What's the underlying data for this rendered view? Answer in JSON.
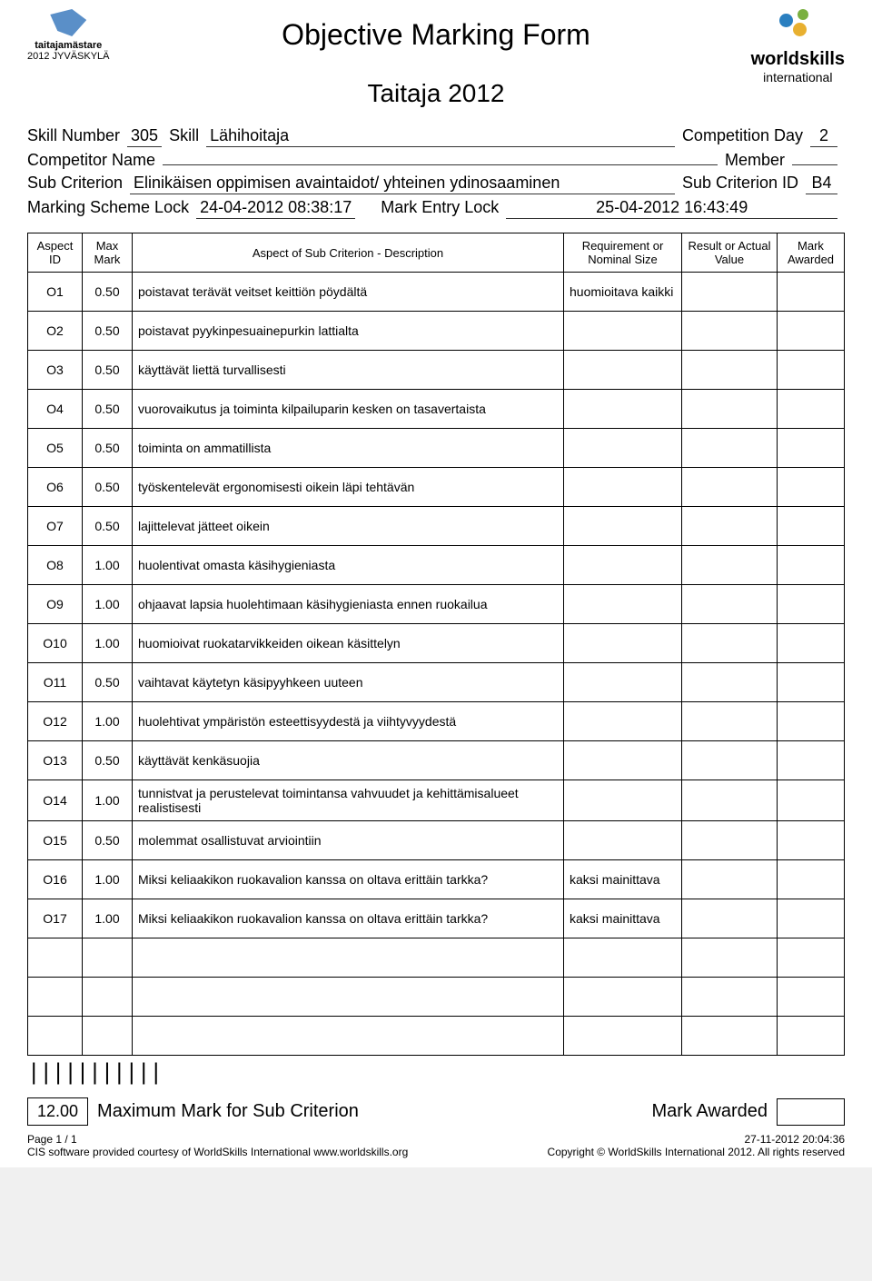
{
  "header": {
    "title": "Objective Marking Form",
    "subtitle": "Taitaja 2012",
    "logo_left_text1": "taitajamästare",
    "logo_left_text2": "2012 JYVÄSKYLÄ",
    "logo_right_text1": "worldskills",
    "logo_right_text2": "international"
  },
  "info": {
    "skill_number_label": "Skill Number",
    "skill_number": "305",
    "skill_label": "Skill",
    "skill": "Lähihoitaja",
    "competition_day_label": "Competition Day",
    "competition_day": "2",
    "competitor_name_label": "Competitor Name",
    "competitor_name": "",
    "member_label": "Member",
    "member": "",
    "sub_criterion_label": "Sub Criterion",
    "sub_criterion": "Elinikäisen oppimisen avaintaidot/ yhteinen ydinosaaminen",
    "sub_criterion_id_label": "Sub Criterion ID",
    "sub_criterion_id": "B4",
    "marking_scheme_lock_label": "Marking Scheme Lock",
    "marking_scheme_lock": "24-04-2012 08:38:17",
    "mark_entry_lock_label": "Mark Entry Lock",
    "mark_entry_lock": "25-04-2012 16:43:49"
  },
  "columns": {
    "aspect_id": "Aspect ID",
    "max_mark": "Max Mark",
    "description": "Aspect of Sub Criterion - Description",
    "requirement": "Requirement or Nominal Size",
    "result": "Result or Actual Value",
    "mark_awarded": "Mark Awarded"
  },
  "rows": [
    {
      "id": "O1",
      "max": "0.50",
      "desc": "poistavat terävät veitset keittiön pöydältä",
      "req": "huomioitava kaikki"
    },
    {
      "id": "O2",
      "max": "0.50",
      "desc": "poistavat pyykinpesuainepurkin lattialta",
      "req": ""
    },
    {
      "id": "O3",
      "max": "0.50",
      "desc": "käyttävät liettä turvallisesti",
      "req": ""
    },
    {
      "id": "O4",
      "max": "0.50",
      "desc": "vuorovaikutus ja toiminta kilpailuparin kesken on tasavertaista",
      "req": ""
    },
    {
      "id": "O5",
      "max": "0.50",
      "desc": "toiminta on ammatillista",
      "req": ""
    },
    {
      "id": "O6",
      "max": "0.50",
      "desc": "työskentelevät ergonomisesti oikein läpi tehtävän",
      "req": ""
    },
    {
      "id": "O7",
      "max": "0.50",
      "desc": "lajittelevat jätteet oikein",
      "req": ""
    },
    {
      "id": "O8",
      "max": "1.00",
      "desc": "huolentivat omasta käsihygieniasta",
      "req": ""
    },
    {
      "id": "O9",
      "max": "1.00",
      "desc": "ohjaavat lapsia huolehtimaan käsihygieniasta ennen ruokailua",
      "req": ""
    },
    {
      "id": "O10",
      "max": "1.00",
      "desc": "huomioivat ruokatarvikkeiden oikean käsittelyn",
      "req": ""
    },
    {
      "id": "O11",
      "max": "0.50",
      "desc": "vaihtavat käytetyn käsipyyhkeen uuteen",
      "req": ""
    },
    {
      "id": "O12",
      "max": "1.00",
      "desc": "huolehtivat ympäristön esteettisyydestä ja viihtyvyydestä",
      "req": ""
    },
    {
      "id": "O13",
      "max": "0.50",
      "desc": "käyttävät kenkäsuojia",
      "req": ""
    },
    {
      "id": "O14",
      "max": "1.00",
      "desc": "tunnistvat ja perustelevat toimintansa vahvuudet ja kehittämisalueet realistisesti",
      "req": ""
    },
    {
      "id": "O15",
      "max": "0.50",
      "desc": "molemmat osallistuvat arviointiin",
      "req": ""
    },
    {
      "id": "O16",
      "max": "1.00",
      "desc": "Miksi keliaakikon ruokavalion kanssa on oltava erittäin tarkka?",
      "req": "kaksi mainittava"
    },
    {
      "id": "O17",
      "max": "1.00",
      "desc": "Miksi keliaakikon ruokavalion kanssa on oltava erittäin tarkka?",
      "req": "kaksi mainittava"
    },
    {
      "id": "",
      "max": "",
      "desc": "",
      "req": ""
    },
    {
      "id": "",
      "max": "",
      "desc": "",
      "req": ""
    },
    {
      "id": "",
      "max": "",
      "desc": "",
      "req": ""
    }
  ],
  "footer": {
    "total_max": "12.00",
    "total_label": "Maximum Mark for Sub Criterion",
    "awarded_label": "Mark Awarded",
    "page": "Page 1 / 1",
    "timestamp": "27-11-2012 20:04:36",
    "cis_text": "CIS software provided courtesy of WorldSkills International www.worldskills.org",
    "copyright": "Copyright © WorldSkills International 2012. All rights reserved"
  }
}
